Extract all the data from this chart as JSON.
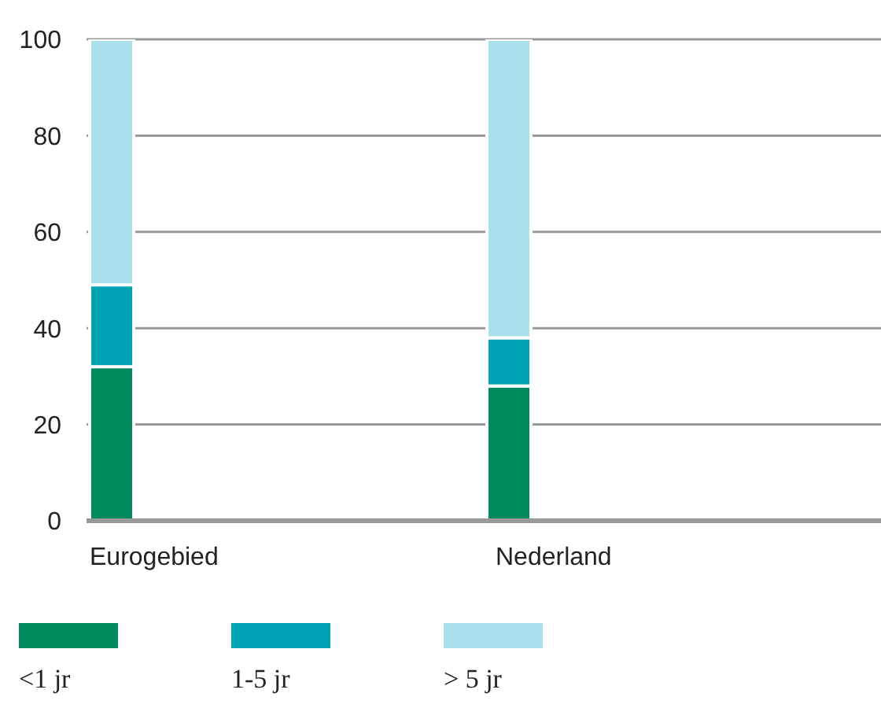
{
  "chart_data": {
    "type": "bar",
    "stacked": true,
    "categories": [
      "Eurogebied",
      "Nederland"
    ],
    "series": [
      {
        "name": "<1 jr",
        "color": "#008a5e",
        "values": [
          32,
          28
        ]
      },
      {
        "name": "1-5 jr",
        "color": "#00a3b4",
        "values": [
          17,
          10
        ]
      },
      {
        "name": "> 5 jr",
        "color": "#aadfec",
        "values": [
          51,
          62
        ]
      }
    ],
    "ylim": [
      0,
      100
    ],
    "yticks": [
      0,
      20,
      40,
      60,
      80,
      100
    ],
    "grid": "y",
    "legend": "bottom"
  }
}
